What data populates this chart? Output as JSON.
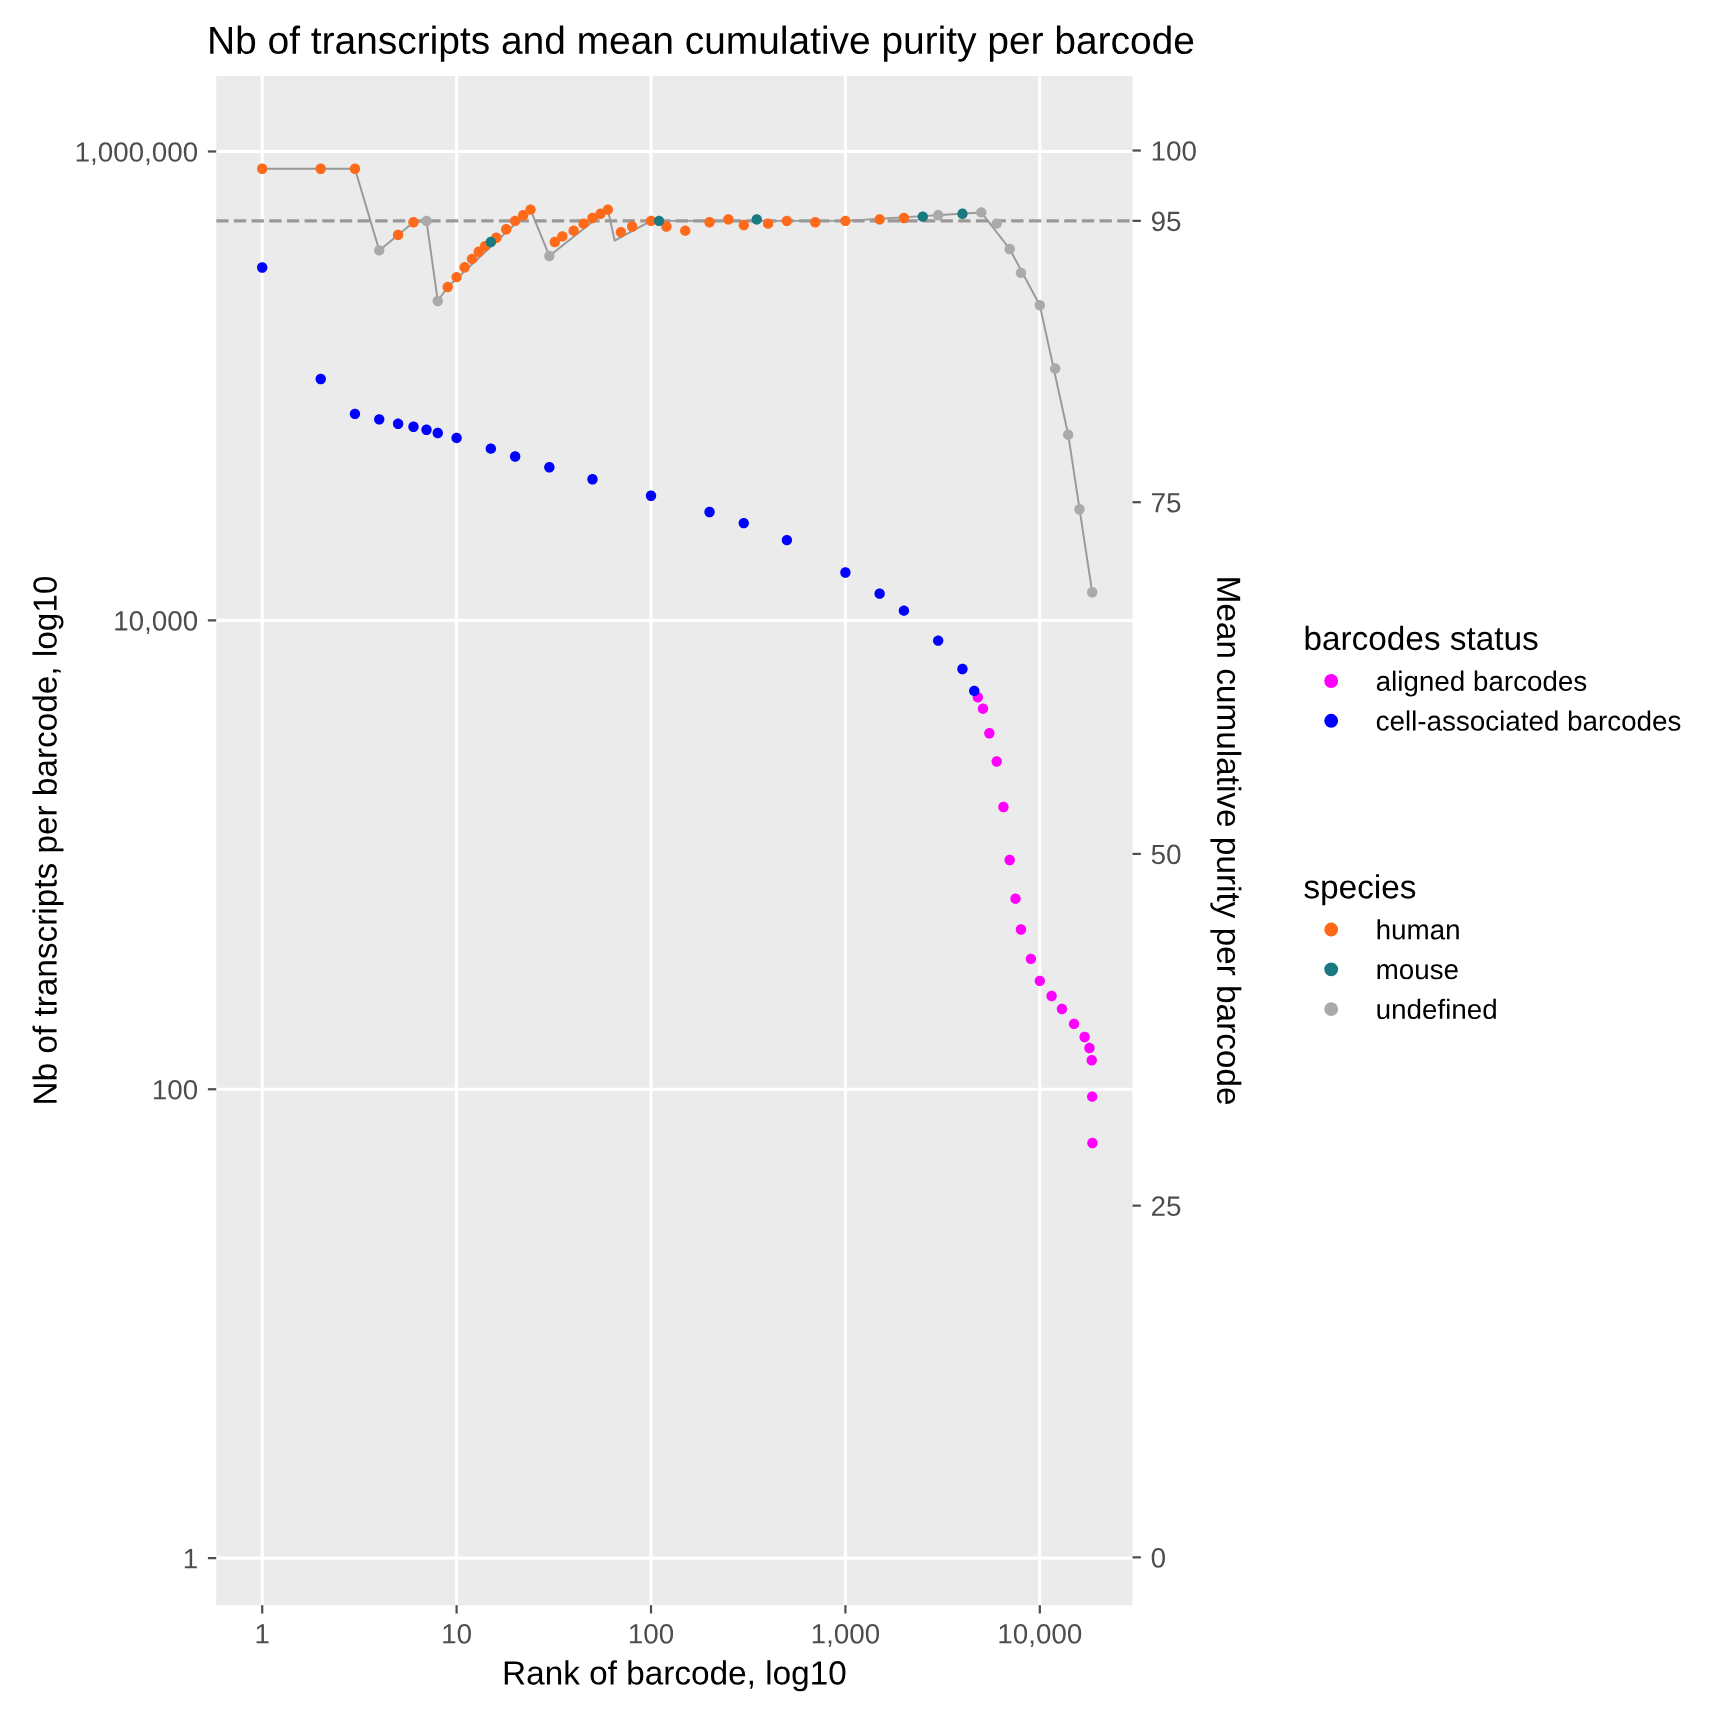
{
  "chart_data": {
    "type": "scatter",
    "title": "Nb of transcripts and mean cumulative purity per barcode",
    "xlabel": "Rank of barcode, log10",
    "ylabel": "Nb of transcripts per barcode, log10",
    "y2label": "Mean cumulative purity per barcode",
    "legend_title": [
      "barcodes status",
      "species"
    ],
    "legend": "right",
    "log": "xy",
    "grid": true,
    "marker": "circle",
    "xlim": [
      0.58,
      30000
    ],
    "xticks": [
      1,
      10,
      100,
      {
        "value": 1000,
        "label": "1,000"
      },
      {
        "value": 10000,
        "label": "10,000"
      }
    ],
    "ylim": [
      0.63,
      2100000
    ],
    "yticks": [
      1,
      100,
      {
        "value": 10000,
        "label": "10,000"
      },
      {
        "value": 1000000,
        "label": "1,000,000"
      }
    ],
    "y2lim": [
      -3.4,
      105.3
    ],
    "y2ticks": [
      0,
      25,
      50,
      75,
      95,
      100
    ],
    "ref_lines": [
      {
        "axis": "y2",
        "value": 95,
        "color": "#999999",
        "line_style": "dashed"
      }
    ],
    "series": [
      {
        "type": "line",
        "axis": "y2",
        "color": "#999999",
        "line_style": "solid",
        "marker": "none",
        "x": [
          1,
          2,
          3,
          4,
          5,
          6,
          7,
          8,
          9,
          24,
          30,
          60,
          65,
          100,
          1000,
          5000,
          7000,
          10000,
          14000,
          18600
        ],
        "values": [
          98.7,
          98.7,
          98.7,
          92.9,
          94.0,
          94.9,
          95.0,
          89.3,
          90.3,
          95.8,
          92.5,
          95.8,
          93.6,
          95.0,
          95.0,
          95.6,
          93.0,
          89.0,
          79.8,
          68.6
        ]
      },
      {
        "name": "aligned barcodes",
        "axis": "y",
        "color": "#ff00ff",
        "x": [
          4800,
          5100,
          5500,
          6000,
          6500,
          7000,
          7500,
          8000,
          9000,
          10000,
          11500,
          13000,
          15000,
          17000,
          18000,
          18500,
          18600,
          18650
        ],
        "values": [
          4700,
          4200,
          3300,
          2500,
          1600,
          950,
          650,
          480,
          360,
          290,
          250,
          220,
          190,
          167,
          150,
          133,
          93,
          59
        ]
      },
      {
        "name": "cell-associated barcodes",
        "axis": "y",
        "color": "#0000ff",
        "x": [
          1,
          2,
          3,
          4,
          5,
          6,
          7,
          8,
          10,
          15,
          20,
          30,
          50,
          100,
          200,
          300,
          500,
          1000,
          1500,
          2000,
          3000,
          4000,
          4600
        ],
        "values": [
          320000,
          107000,
          76000,
          72000,
          69000,
          67000,
          65000,
          63000,
          60000,
          54000,
          50000,
          45000,
          40000,
          34000,
          29000,
          26000,
          22000,
          16000,
          13000,
          11000,
          8200,
          6200,
          5000
        ]
      },
      {
        "name": "human",
        "axis": "y2",
        "color": "#ff6a1a",
        "x": [
          1,
          2,
          3,
          5,
          6,
          9,
          10,
          11,
          12,
          13,
          14,
          16,
          18,
          20,
          22,
          24,
          32,
          35,
          40,
          45,
          50,
          55,
          60,
          70,
          80,
          100,
          120,
          150,
          200,
          250,
          300,
          400,
          500,
          700,
          1000,
          1500,
          2000
        ],
        "values": [
          98.7,
          98.7,
          98.7,
          94.0,
          94.9,
          90.3,
          91.0,
          91.7,
          92.3,
          92.8,
          93.2,
          93.8,
          94.4,
          95.0,
          95.4,
          95.8,
          93.5,
          93.9,
          94.3,
          94.8,
          95.2,
          95.5,
          95.8,
          94.2,
          94.6,
          95.0,
          94.6,
          94.3,
          94.9,
          95.1,
          94.7,
          94.8,
          95.0,
          94.9,
          95.0,
          95.1,
          95.2
        ]
      },
      {
        "name": "mouse",
        "axis": "y2",
        "color": "#1a7a80",
        "x": [
          15,
          110,
          350,
          2500,
          4000
        ],
        "values": [
          93.5,
          95.0,
          95.1,
          95.3,
          95.5
        ]
      },
      {
        "name": "undefined",
        "axis": "y2",
        "color": "#aaaaaa",
        "x": [
          4,
          7,
          8,
          30,
          3000,
          5000,
          6000,
          7000,
          8000,
          10000,
          12000,
          14000,
          16000,
          18600
        ],
        "values": [
          92.9,
          95.0,
          89.3,
          92.5,
          95.4,
          95.6,
          94.8,
          93.0,
          91.3,
          89.0,
          84.5,
          79.8,
          74.5,
          68.6
        ]
      }
    ]
  }
}
